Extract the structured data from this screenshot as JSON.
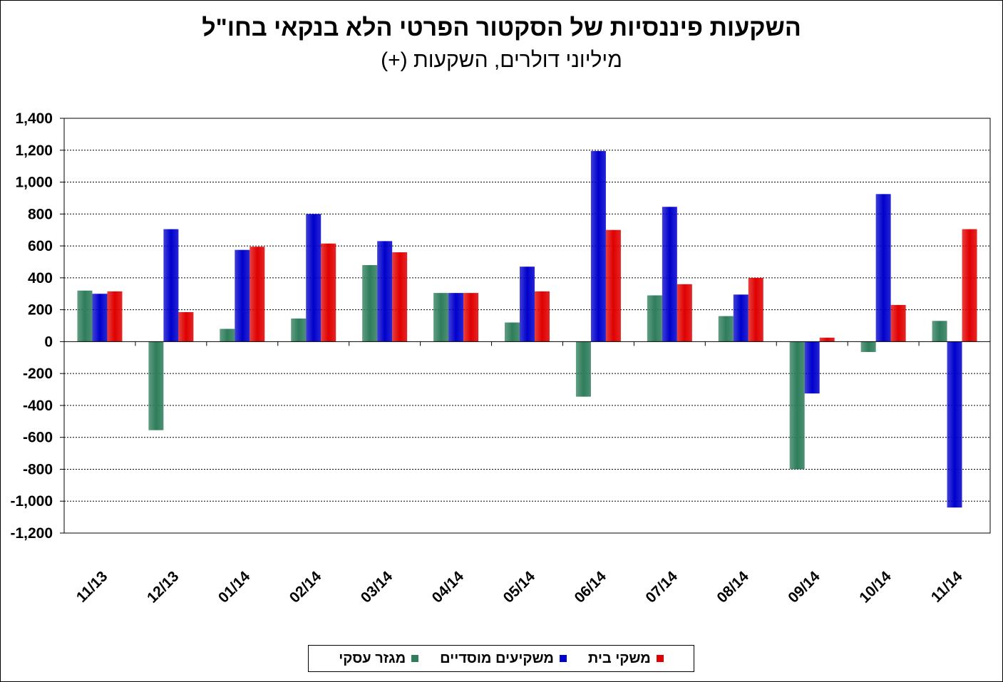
{
  "chart_data": {
    "type": "bar",
    "title": "השקעות פיננסיות של הסקטור הפרטי הלא בנקאי בחו\"ל",
    "subtitle": "מיליוני דולרים, השקעות (+)",
    "categories": [
      "11/13",
      "12/13",
      "01/14",
      "02/14",
      "03/14",
      "04/14",
      "05/14",
      "06/14",
      "07/14",
      "08/14",
      "09/14",
      "10/14",
      "11/14"
    ],
    "series": [
      {
        "name": "מגזר עסקי",
        "color": "#2E7D5B",
        "values": [
          320,
          -555,
          80,
          145,
          480,
          305,
          120,
          -345,
          290,
          160,
          -800,
          -65,
          130
        ]
      },
      {
        "name": "משקיעים מוסדיים",
        "color": "#0000CC",
        "values": [
          300,
          705,
          575,
          800,
          630,
          305,
          470,
          1195,
          845,
          295,
          -325,
          925,
          -1040
        ]
      },
      {
        "name": "משקי בית",
        "color": "#E00000",
        "values": [
          315,
          185,
          595,
          615,
          560,
          305,
          315,
          700,
          360,
          400,
          25,
          230,
          705
        ]
      }
    ],
    "ylim": [
      -1200,
      1400
    ],
    "yticks": [
      "1,400",
      "1,200",
      "1,000",
      "800",
      "600",
      "400",
      "200",
      "0",
      "-200",
      "-400",
      "-600",
      "-800",
      "-1,000",
      "-1,200"
    ],
    "legend_position": "bottom",
    "grid": true
  }
}
